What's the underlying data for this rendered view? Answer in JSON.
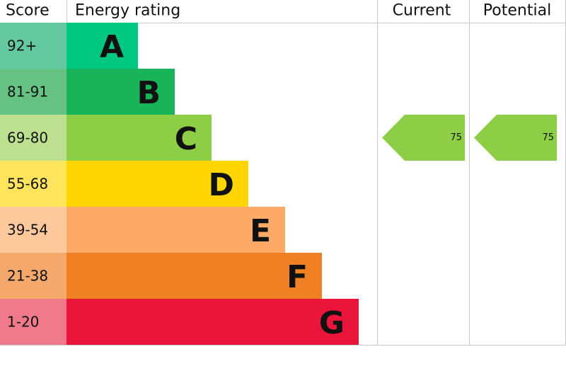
{
  "header": {
    "score": "Score",
    "rating": "Energy rating",
    "current": "Current",
    "potential": "Potential"
  },
  "bands": [
    {
      "score": "92+",
      "letter": "A",
      "color": "#00c781",
      "score_color": "#64c8a0"
    },
    {
      "score": "81-91",
      "letter": "B",
      "color": "#19b459",
      "score_color": "#66c283"
    },
    {
      "score": "69-80",
      "letter": "C",
      "color": "#8dce46",
      "score_color": "#bce08f"
    },
    {
      "score": "55-68",
      "letter": "D",
      "color": "#ffd500",
      "score_color": "#ffe45c"
    },
    {
      "score": "39-54",
      "letter": "E",
      "color": "#fcaa65",
      "score_color": "#fdc89c"
    },
    {
      "score": "21-38",
      "letter": "F",
      "color": "#ef8023",
      "score_color": "#f4a86c"
    },
    {
      "score": "1-20",
      "letter": "G",
      "color": "#e9153b",
      "score_color": "#f07a8c"
    }
  ],
  "current": 75,
  "potential": 75
}
